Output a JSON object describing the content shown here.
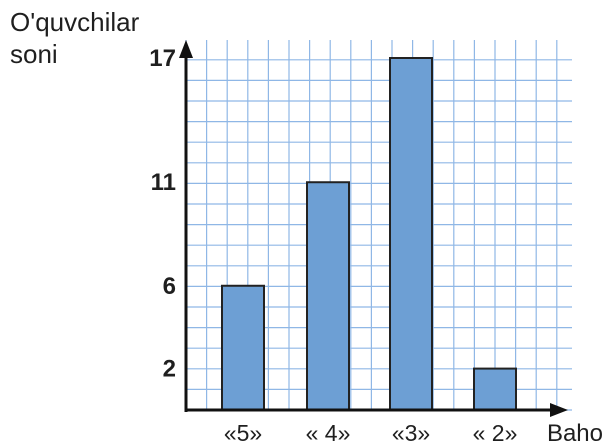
{
  "chart_data": {
    "type": "bar",
    "ylabel_line1": "O'quvchilar",
    "ylabel_line2": "soni",
    "xlabel": "Baho",
    "categories": [
      "«5»",
      "« 4»",
      "«3»",
      "« 2»"
    ],
    "values": [
      6,
      11,
      17,
      2
    ],
    "yticks": [
      2,
      6,
      11,
      17
    ],
    "ylim": [
      0,
      17
    ],
    "grid": true,
    "colors": {
      "bar": "#6d9fd4",
      "bar_edge": "#222222",
      "grid": "#8fb7e6",
      "axis": "#111111"
    }
  }
}
